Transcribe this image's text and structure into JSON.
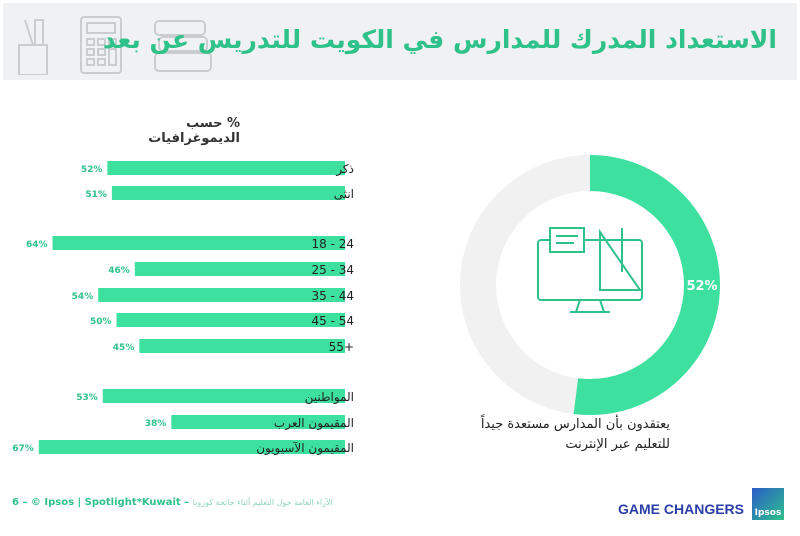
{
  "header": {
    "title": "الاستعداد المدرك للمدارس في الكويت للتدريس عن بعد"
  },
  "chart_data": [
    {
      "type": "bar",
      "orientation": "horizontal",
      "title": "% حسب الديموغرافيات",
      "categories": [
        "ذكر",
        "انثى",
        "18 - 24",
        "25 - 34",
        "35 - 44",
        "45 - 54",
        "55+",
        "المواطنين",
        "المقيمون العرب",
        "المقيمون الآسيويون"
      ],
      "values": [
        52,
        51,
        64,
        46,
        54,
        50,
        45,
        53,
        38,
        67
      ],
      "labels": [
        "52%",
        "51%",
        "64%",
        "46%",
        "54%",
        "50%",
        "45%",
        "53%",
        "38%",
        "67%"
      ],
      "unit": "%",
      "color": "#3ee0a0"
    },
    {
      "type": "pie",
      "style": "donut",
      "values": [
        52,
        48
      ],
      "labels": [
        "52%",
        ""
      ],
      "colors": [
        "#3ee0a0",
        "#f1f1f1"
      ],
      "caption_line1": "يعتقدون بأن المدارس مستعدة جيداً",
      "caption_line2": "للتعليم عبر الإنترنت"
    }
  ],
  "footer": {
    "text": "6 – © Ipsos | Spotlight*Kuwait –",
    "arabic": "الآراء العامة حول التعليم أثناء جائحة كورونا",
    "brand": "GAME CHANGERS",
    "logo": "Ipsos"
  }
}
